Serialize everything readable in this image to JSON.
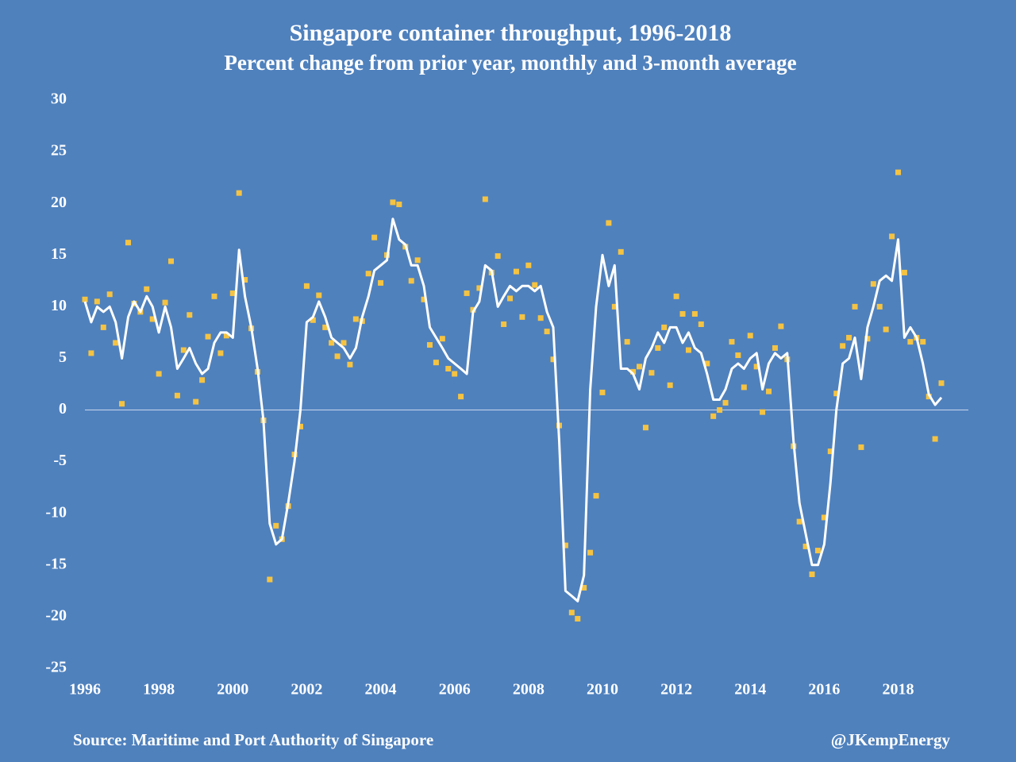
{
  "chart_data": {
    "type": "line-scatter",
    "title": "Singapore container throughput, 1996-2018",
    "subtitle": "Percent change from prior year, monthly and 3-month average",
    "source": "Source: Maritime and Port Authority of Singapore",
    "credit": "@JKempEnergy",
    "xlim": [
      1996,
      2019.9
    ],
    "xticks": [
      1996,
      1998,
      2000,
      2002,
      2004,
      2006,
      2008,
      2010,
      2012,
      2014,
      2016,
      2018
    ],
    "ylim": [
      -25,
      30
    ],
    "yticks": [
      -25,
      -20,
      -15,
      -10,
      -5,
      0,
      5,
      10,
      15,
      20,
      25,
      30
    ],
    "x": [
      1996,
      1996.17,
      1996.33,
      1996.5,
      1996.67,
      1996.83,
      1997,
      1997.17,
      1997.33,
      1997.5,
      1997.67,
      1997.83,
      1998,
      1998.17,
      1998.33,
      1998.5,
      1998.67,
      1998.83,
      1999,
      1999.17,
      1999.33,
      1999.5,
      1999.67,
      1999.83,
      2000,
      2000.17,
      2000.33,
      2000.5,
      2000.67,
      2000.83,
      2001,
      2001.17,
      2001.33,
      2001.5,
      2001.67,
      2001.83,
      2002,
      2002.17,
      2002.33,
      2002.5,
      2002.67,
      2002.83,
      2003,
      2003.17,
      2003.33,
      2003.5,
      2003.67,
      2003.83,
      2004,
      2004.17,
      2004.33,
      2004.5,
      2004.67,
      2004.83,
      2005,
      2005.17,
      2005.33,
      2005.5,
      2005.67,
      2005.83,
      2006,
      2006.17,
      2006.33,
      2006.5,
      2006.67,
      2006.83,
      2007,
      2007.17,
      2007.33,
      2007.5,
      2007.67,
      2007.83,
      2008,
      2008.17,
      2008.33,
      2008.5,
      2008.67,
      2008.83,
      2009,
      2009.17,
      2009.33,
      2009.5,
      2009.67,
      2009.83,
      2010,
      2010.17,
      2010.33,
      2010.5,
      2010.67,
      2010.83,
      2011,
      2011.17,
      2011.33,
      2011.5,
      2011.67,
      2011.83,
      2012,
      2012.17,
      2012.33,
      2012.5,
      2012.67,
      2012.83,
      2013,
      2013.17,
      2013.33,
      2013.5,
      2013.67,
      2013.83,
      2014,
      2014.17,
      2014.33,
      2014.5,
      2014.67,
      2014.83,
      2015,
      2015.17,
      2015.33,
      2015.5,
      2015.67,
      2015.83,
      2016,
      2016.17,
      2016.33,
      2016.5,
      2016.67,
      2016.83,
      2017,
      2017.17,
      2017.33,
      2017.5,
      2017.67,
      2017.83,
      2018,
      2018.17,
      2018.33,
      2018.5,
      2018.67,
      2018.83,
      2019,
      2019.17
    ],
    "series": [
      {
        "style": "line",
        "color": "#ffffff",
        "values": [
          10.5,
          8.5,
          10,
          9.5,
          10,
          8.5,
          5,
          9,
          10.5,
          9.5,
          11,
          10,
          7.5,
          10,
          8,
          4,
          5,
          6,
          4.5,
          3.5,
          4,
          6.5,
          7.5,
          7.5,
          7,
          15.5,
          11,
          8,
          4,
          -1,
          -11,
          -13,
          -12.5,
          -9,
          -5,
          0,
          8.5,
          9,
          10.5,
          9,
          7,
          6.5,
          6,
          5,
          6,
          9,
          11,
          13.5,
          14,
          14.5,
          18.5,
          16.5,
          16,
          14,
          14,
          12,
          8,
          7,
          6,
          5,
          4.5,
          4,
          3.5,
          9.5,
          10.5,
          14,
          13.5,
          10,
          11,
          12,
          11.5,
          12,
          12,
          11.5,
          12,
          9.5,
          8,
          -3,
          -17.5,
          -18,
          -18.5,
          -16,
          2,
          10,
          15,
          12,
          14,
          4,
          4,
          3.5,
          2,
          5,
          6,
          7.5,
          6.5,
          8,
          8,
          6.5,
          7.5,
          6,
          5.5,
          3.5,
          1,
          1,
          2,
          4,
          4.5,
          4,
          5,
          5.5,
          2,
          4.5,
          5.5,
          5,
          5.5,
          -3,
          -9,
          -12,
          -15,
          -15,
          -13,
          -7,
          0,
          4.5,
          5,
          7,
          3,
          8,
          10,
          12.5,
          13,
          12.5,
          16.5,
          7,
          8,
          7,
          4.5,
          1.5,
          0.5,
          1.2
        ]
      },
      {
        "style": "scatter",
        "color": "#f5c342",
        "values": [
          10.7,
          5.5,
          10.5,
          8,
          11.2,
          6.5,
          0.6,
          16.2,
          10.3,
          9.5,
          11.7,
          8.8,
          3.5,
          10.4,
          14.4,
          1.4,
          5.8,
          9.2,
          0.8,
          2.9,
          7.1,
          11,
          5.5,
          7.2,
          11.3,
          21,
          12.6,
          7.9,
          3.7,
          -1,
          -16.4,
          -11.2,
          -12.5,
          -9.3,
          -4.3,
          -1.6,
          12,
          8.7,
          11.1,
          8,
          6.5,
          5.2,
          6.5,
          4.4,
          8.8,
          8.6,
          13.2,
          16.7,
          12.3,
          15,
          20.1,
          19.9,
          15.8,
          12.5,
          14.5,
          10.7,
          6.3,
          4.6,
          6.9,
          4,
          3.5,
          1.3,
          11.3,
          9.7,
          11.8,
          20.4,
          13.3,
          14.9,
          8.3,
          10.8,
          13.4,
          9,
          14,
          12.1,
          8.9,
          7.6,
          4.9,
          -1.5,
          -13.1,
          -19.6,
          -20.2,
          -17.2,
          -13.8,
          -8.3,
          1.7,
          18.1,
          10,
          15.3,
          6.6,
          3.7,
          4.2,
          -1.7,
          3.6,
          6,
          8,
          2.4,
          11,
          9.3,
          5.8,
          9.3,
          8.3,
          4.5,
          -0.6,
          0,
          0.7,
          6.6,
          5.3,
          2.2,
          7.2,
          4.2,
          -0.2,
          1.8,
          6,
          8.1,
          4.9,
          -3.5,
          -10.8,
          -13.2,
          -15.9,
          -13.6,
          -10.4,
          -4,
          1.6,
          6.2,
          7,
          10,
          -3.6,
          6.9,
          12.2,
          10,
          7.8,
          16.8,
          23,
          13.3,
          6.6,
          7,
          6.6,
          1.3,
          -2.8,
          2.6
        ]
      }
    ]
  }
}
